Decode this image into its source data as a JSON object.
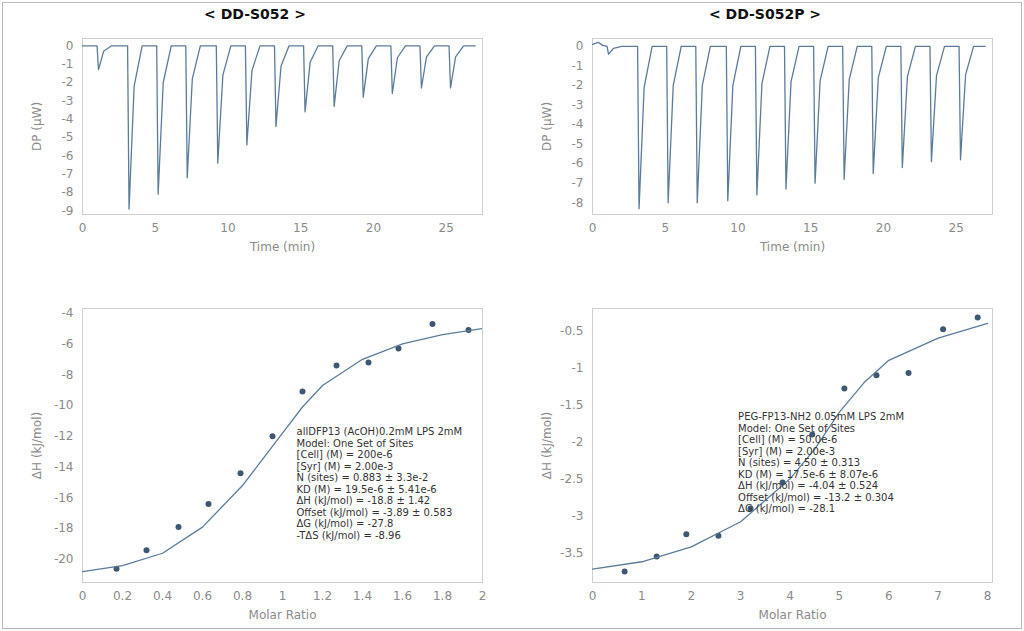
{
  "chart_data": [
    {
      "type": "line",
      "title": "< DD-S052 >",
      "xlabel": "Time (min)",
      "ylabel": "DP (μW)",
      "xlim": [
        0,
        27.5
      ],
      "xticks": [
        0,
        5,
        10,
        15,
        20,
        25
      ],
      "ylim": [
        -9.2,
        0.4
      ],
      "yticks": [
        0,
        -1,
        -2,
        -3,
        -4,
        -5,
        -6,
        -7,
        -8,
        -9
      ],
      "color": "#5b7c99",
      "x": [
        0,
        1.0,
        1.1,
        1.45,
        2.0,
        3.1,
        3.2,
        3.55,
        4.1,
        5.1,
        5.2,
        5.55,
        6.1,
        7.1,
        7.2,
        7.55,
        8.1,
        9.2,
        9.3,
        9.65,
        10.2,
        11.2,
        11.3,
        11.65,
        12.2,
        13.2,
        13.3,
        13.65,
        14.2,
        15.2,
        15.3,
        15.65,
        16.2,
        17.2,
        17.3,
        17.65,
        18.2,
        19.2,
        19.3,
        19.65,
        20.2,
        21.2,
        21.3,
        21.65,
        22.2,
        23.2,
        23.3,
        23.65,
        24.2,
        25.2,
        25.3,
        25.65,
        26.2,
        27.0
      ],
      "values": [
        0,
        0,
        -1.3,
        -0.3,
        0,
        0,
        -8.9,
        -2.2,
        0,
        0,
        -8.1,
        -2.0,
        0,
        0,
        -7.2,
        -1.8,
        0,
        0,
        -6.4,
        -1.6,
        0,
        0,
        -5.4,
        -1.35,
        0,
        0,
        -4.4,
        -1.1,
        0,
        0,
        -3.6,
        -0.9,
        0,
        0,
        -3.3,
        -0.8,
        0,
        0,
        -2.8,
        -0.7,
        0,
        0,
        -2.6,
        -0.65,
        0,
        0,
        -2.3,
        -0.6,
        0,
        0,
        -2.3,
        -0.6,
        0,
        0
      ]
    },
    {
      "type": "line",
      "title": "< DD-S052P >",
      "xlabel": "Time (min)",
      "ylabel": "DP (μW)",
      "xlim": [
        0,
        27.5
      ],
      "xticks": [
        0,
        5,
        10,
        15,
        20,
        25
      ],
      "ylim": [
        -8.6,
        0.4
      ],
      "yticks": [
        0,
        -1,
        -2,
        -3,
        -4,
        -5,
        -6,
        -7,
        -8
      ],
      "color": "#5b7c99",
      "x": [
        0,
        0.4,
        0.7,
        1.0,
        1.1,
        1.45,
        2.0,
        3.1,
        3.2,
        3.55,
        4.1,
        5.1,
        5.2,
        5.55,
        6.1,
        7.1,
        7.2,
        7.55,
        8.1,
        9.2,
        9.3,
        9.65,
        10.2,
        11.2,
        11.3,
        11.65,
        12.2,
        13.2,
        13.3,
        13.65,
        14.2,
        15.2,
        15.3,
        15.65,
        16.2,
        17.2,
        17.3,
        17.65,
        18.2,
        19.2,
        19.3,
        19.65,
        20.2,
        21.2,
        21.3,
        21.65,
        22.2,
        23.2,
        23.3,
        23.65,
        24.2,
        25.2,
        25.3,
        25.65,
        26.2,
        27.0
      ],
      "values": [
        0.1,
        0.2,
        0.05,
        0,
        -0.4,
        -0.1,
        0,
        0,
        -8.3,
        -2.1,
        0,
        0,
        -8.0,
        -2.0,
        0,
        0,
        -8.0,
        -2.0,
        0,
        0,
        -7.9,
        -2.0,
        0,
        0,
        -7.6,
        -1.9,
        0,
        0,
        -7.3,
        -1.8,
        0,
        0,
        -7.0,
        -1.75,
        0,
        0,
        -6.8,
        -1.7,
        0,
        0,
        -6.5,
        -1.6,
        0,
        0,
        -6.2,
        -1.55,
        0,
        0,
        -5.9,
        -1.5,
        0,
        0,
        -5.8,
        -1.45,
        0,
        0
      ]
    },
    {
      "type": "scatter",
      "xlabel": "Molar Ratio",
      "ylabel": "ΔH (kJ/mol)",
      "xlim": [
        0,
        2
      ],
      "xticks": [
        0,
        0.2,
        0.4,
        0.6,
        0.8,
        1,
        1.2,
        1.4,
        1.6,
        1.8,
        2
      ],
      "ylim": [
        -21.5,
        -3.7
      ],
      "yticks": [
        -4,
        -6,
        -8,
        -10,
        -12,
        -14,
        -16,
        -18,
        -20
      ],
      "series": [
        {
          "type": "scatter",
          "marker": "circle",
          "color": "#3f5872",
          "x": [
            0.17,
            0.32,
            0.48,
            0.63,
            0.79,
            0.95,
            1.1,
            1.27,
            1.43,
            1.58,
            1.75,
            1.93
          ],
          "values": [
            -20.6,
            -19.4,
            -17.9,
            -16.4,
            -14.4,
            -12.0,
            -9.1,
            -7.4,
            -7.2,
            -6.3,
            -4.7,
            -5.1
          ]
        },
        {
          "type": "line",
          "color": "#5b7c99",
          "x": [
            0,
            0.2,
            0.4,
            0.6,
            0.8,
            0.9,
            1.0,
            1.1,
            1.2,
            1.4,
            1.6,
            1.8,
            2.0
          ],
          "values": [
            -20.8,
            -20.4,
            -19.6,
            -17.9,
            -15.2,
            -13.5,
            -11.8,
            -10.1,
            -8.7,
            -7.0,
            -6.0,
            -5.4,
            -5.0
          ]
        }
      ],
      "annotations": [
        "allDFP13 (AcOH)0.2mM LPS 2mM",
        "Model: One Set of Sites",
        "[Cell] (M) = 200e-6",
        "[Syr] (M) = 2.00e-3",
        "N (sites) = 0.883 ± 3.3e-2",
        "KD (M) = 19.5e-6 ± 5.41e-6",
        "ΔH (kJ/mol) = -18.8 ± 1.42",
        "Offset (kJ/mol) = -3.89 ± 0.583",
        "ΔG (kJ/mol) = -27.8",
        "-TΔS (kJ/mol) = -8.96"
      ]
    },
    {
      "type": "scatter",
      "xlabel": "Molar Ratio",
      "ylabel": "ΔH (kJ/mol)",
      "xlim": [
        0,
        8.1
      ],
      "xticks": [
        0,
        1,
        2,
        3,
        4,
        5,
        6,
        7,
        8
      ],
      "ylim": [
        -3.9,
        -0.2
      ],
      "yticks": [
        -0.5,
        -1,
        -1.5,
        -2,
        -2.5,
        -3,
        -3.5
      ],
      "series": [
        {
          "type": "scatter",
          "marker": "circle",
          "color": "#3f5872",
          "x": [
            0.65,
            1.3,
            1.9,
            2.55,
            3.2,
            3.85,
            4.45,
            5.1,
            5.75,
            6.4,
            7.1,
            7.8
          ],
          "values": [
            -3.75,
            -3.55,
            -3.25,
            -3.27,
            -2.9,
            -2.55,
            -1.9,
            -1.28,
            -1.1,
            -1.07,
            -0.48,
            -0.32
          ]
        },
        {
          "type": "line",
          "color": "#5b7c99",
          "x": [
            0,
            1,
            2,
            3,
            4,
            4.5,
            5,
            5.5,
            6,
            7,
            8
          ],
          "values": [
            -3.72,
            -3.62,
            -3.42,
            -3.08,
            -2.5,
            -2.1,
            -1.6,
            -1.2,
            -0.9,
            -0.6,
            -0.4
          ]
        }
      ],
      "annotations": [
        "PEG-FP13-NH2 0.05mM LPS 2mM",
        "Model: One Set of Sites",
        "[Cell] (M) = 50.0e-6",
        "[Syr] (M) = 2.00e-3",
        "N (sites) = 4.50 ± 0.313",
        "KD (M) = 17.5e-6 ± 8.07e-6",
        "ΔH (kJ/mol) = -4.04 ± 0.524",
        "Offset (kJ/mol) = -13.2 ± 0.304",
        "ΔG (kJ/mol) = -28.1"
      ]
    }
  ]
}
